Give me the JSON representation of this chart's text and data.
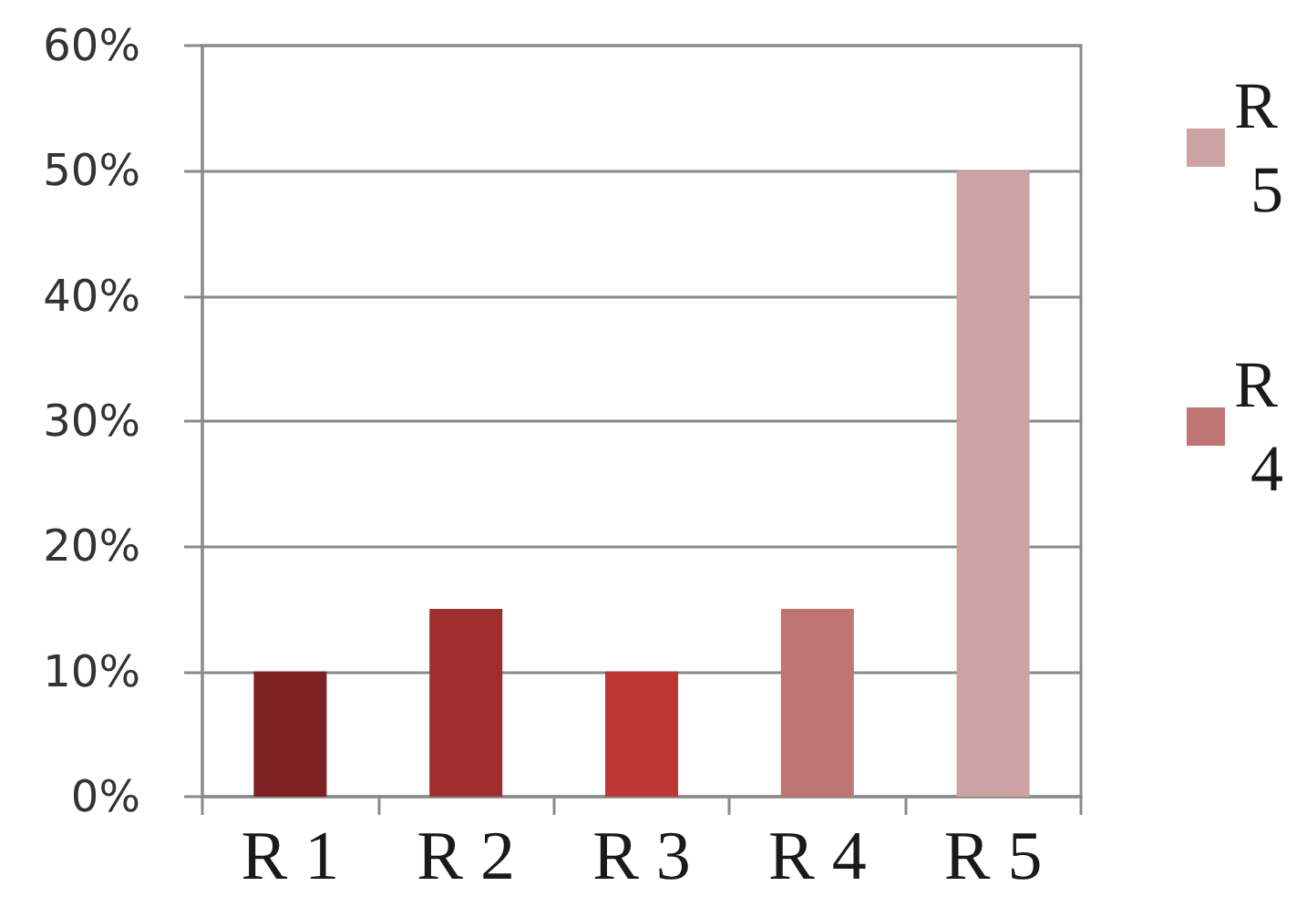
{
  "chart_data": {
    "type": "bar",
    "categories": [
      "R 1",
      "R 2",
      "R 3",
      "R 4",
      "R 5"
    ],
    "series": [
      {
        "color": "#7c2222",
        "values": [
          10,
          null,
          null,
          null,
          null
        ]
      },
      {
        "color": "#a02e2e",
        "values": [
          null,
          15,
          null,
          null,
          null
        ]
      },
      {
        "color": "#bf3636",
        "values": [
          null,
          null,
          10,
          null,
          null
        ]
      },
      {
        "name": "R 4",
        "color": "#bf7373",
        "values": [
          null,
          null,
          null,
          15,
          null
        ]
      },
      {
        "name": "R 5",
        "color": "#cda2a2",
        "values": [
          null,
          null,
          null,
          null,
          50
        ]
      }
    ],
    "ylim": [
      0,
      60
    ],
    "yticks": [
      {
        "value": 0,
        "label": "0%"
      },
      {
        "value": 10,
        "label": "10%"
      },
      {
        "value": 20,
        "label": "20%"
      },
      {
        "value": 30,
        "label": "30%"
      },
      {
        "value": 40,
        "label": "40%"
      },
      {
        "value": 50,
        "label": "50%"
      },
      {
        "value": 60,
        "label": "60%"
      }
    ],
    "grid": "y",
    "legend": "right"
  }
}
